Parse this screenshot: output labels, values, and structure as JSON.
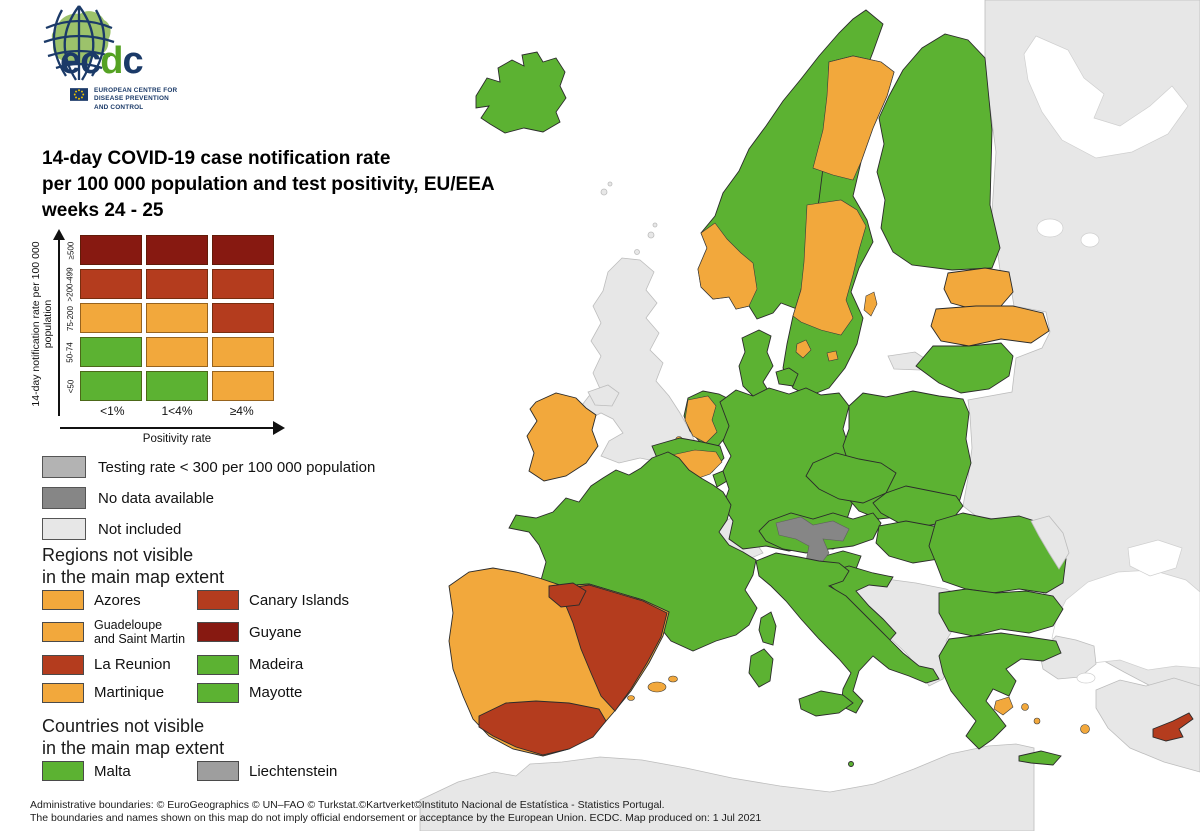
{
  "logo": {
    "wordmark": "ecdc",
    "wordmark_parts": [
      {
        "text": "ec",
        "color": "navy"
      },
      {
        "text": "d",
        "color": "wordmark_green"
      },
      {
        "text": "c",
        "color": "navy"
      }
    ],
    "org_line1": "EUROPEAN CENTRE FOR",
    "org_line2": "DISEASE PREVENTION",
    "org_line3": "AND CONTROL"
  },
  "title": {
    "line1": "14-day COVID-19 case notification rate",
    "line2": "per 100 000 population and test positivity, EU/EEA",
    "line3": "weeks 24 - 25"
  },
  "matrix_legend": {
    "y_axis_label": "14-day notification rate per 100 000 population",
    "x_axis_label": "Positivity rate",
    "rows": [
      "≥500",
      ">200-499",
      "75-200",
      "50-74",
      "<50"
    ],
    "cols": [
      "<1%",
      "1<4%",
      "≥4%"
    ],
    "cell_colors": [
      [
        "dark_red",
        "dark_red",
        "dark_red"
      ],
      [
        "red",
        "red",
        "red"
      ],
      [
        "orange",
        "orange",
        "red"
      ],
      [
        "green",
        "orange",
        "orange"
      ],
      [
        "green",
        "green",
        "orange"
      ]
    ]
  },
  "colors": {
    "green": "#5cb232",
    "orange": "#f2a83c",
    "red": "#b43c1e",
    "dark_red": "#871911",
    "testing_gray": "#b3b3b3",
    "no_data_gray": "#868686",
    "not_included_gray": "#e7e7e7",
    "mid_gray": "#9e9e9e",
    "sea": "#ffffff",
    "navy": "#1b3a68",
    "logo_green": "#9cc26b",
    "wordmark_green": "#55a223",
    "star_yellow": "#f2c500"
  },
  "status_legend": [
    {
      "label": "Testing rate < 300 per 100 000 population",
      "color": "testing_gray"
    },
    {
      "label": "No data available",
      "color": "no_data_gray"
    },
    {
      "label": "Not included",
      "color": "not_included_gray"
    }
  ],
  "regions_section": {
    "heading_line1": "Regions not visible",
    "heading_line2": "in the main map extent",
    "items": [
      {
        "label": "Azores",
        "color": "orange"
      },
      {
        "label": "Canary Islands",
        "color": "red"
      },
      {
        "label": "Guadeloupe\nand Saint Martin",
        "color": "orange",
        "small": true
      },
      {
        "label": "Guyane",
        "color": "dark_red"
      },
      {
        "label": "La Reunion",
        "color": "red"
      },
      {
        "label": "Madeira",
        "color": "green"
      },
      {
        "label": "Martinique",
        "color": "orange"
      },
      {
        "label": "Mayotte",
        "color": "green"
      }
    ]
  },
  "countries_section": {
    "heading_line1": "Countries not visible",
    "heading_line2": "in the main map extent",
    "items": [
      {
        "label": "Malta",
        "color": "green"
      },
      {
        "label": "Liechtenstein",
        "color": "mid_gray"
      }
    ]
  },
  "map_fills": {
    "east_europe_non_eu": "not_included_gray",
    "white_sea": "sea",
    "lake_ladoga": "sea",
    "lake_onega": "sea",
    "black_sea": "sea",
    "sea_of_azov": "sea",
    "sea_of_marmara": "sea",
    "north_africa": "not_included_gray",
    "turkey_europe": "not_included_gray",
    "turkey_anatolia": "not_included_gray",
    "uk": "not_included_gray",
    "northern_ireland": "not_included_gray",
    "shetland_1": "not_included_gray",
    "shetland_2": "not_included_gray",
    "orkney": "not_included_gray",
    "faroe_1": "not_included_gray",
    "faroe_2": "not_included_gray",
    "switzerland": "not_included_gray",
    "west_balkans": "not_included_gray",
    "moldova": "not_included_gray",
    "kaliningrad": "not_included_gray",
    "iceland": "green",
    "norway": "green",
    "norway_southwest": "orange",
    "sweden": "green",
    "sweden_north": "orange",
    "sweden_central": "orange",
    "gotland": "orange",
    "finland": "green",
    "denmark": "green",
    "denmark_islands": "green",
    "copenhagen": "orange",
    "bornholm": "orange",
    "estonia": "orange",
    "latvia": "orange",
    "lithuania": "green",
    "ireland": "orange",
    "netherlands": "green",
    "netherlands_west": "orange",
    "zeeland_coast": "orange",
    "belgium": "green",
    "wallonia": "orange",
    "luxembourg": "green",
    "germany": "green",
    "poland": "green",
    "czechia": "green",
    "slovakia": "green",
    "austria": "green",
    "austria_no_data": "no_data_gray",
    "hungary": "green",
    "slovenia": "green",
    "croatia": "green",
    "romania": "green",
    "bulgaria": "green",
    "france": "green",
    "corsica": "green",
    "italy": "green",
    "sicily": "green",
    "sardinia": "green",
    "malta": "green",
    "iberia": "orange",
    "spain_east": "red",
    "spain_south": "red",
    "spain_north": "red",
    "balearic_1": "orange",
    "balearic_2": "orange",
    "balearic_3": "orange",
    "greece": "green",
    "crete": "green",
    "attica": "orange",
    "greek_island_1": "orange",
    "greek_island_2": "orange",
    "greek_island_3": "orange",
    "cyprus": "red"
  },
  "footer": {
    "line1": "Administrative boundaries: © EuroGeographics © UN–FAO © Turkstat.©Kartverket©Instituto Nacional de Estatística - Statistics Portugal.",
    "line2": "The boundaries and names shown on this map do not imply official endorsement or acceptance by the European Union. ECDC. Map produced on: 1 Jul 2021"
  }
}
